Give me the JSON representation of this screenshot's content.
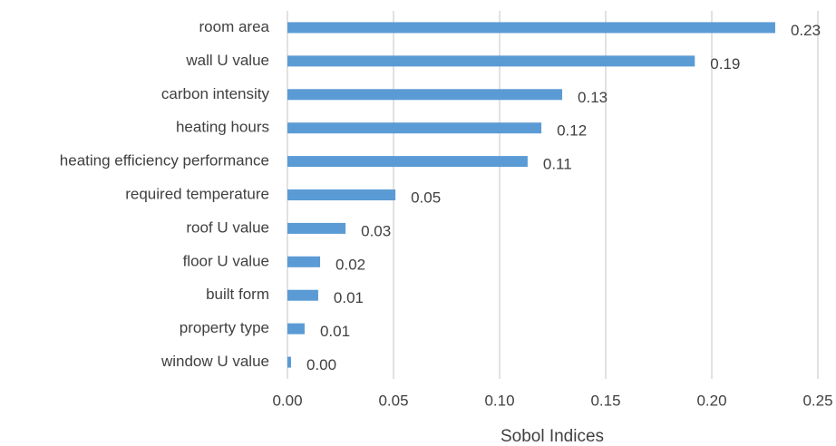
{
  "chart_data": {
    "type": "barh",
    "xlabel": "Sobol Indices",
    "categories": [
      "room area",
      "wall U value",
      "carbon intensity",
      "heating hours",
      "heating efficiency performance",
      "required temperature",
      "roof U value",
      "floor U value",
      "built form",
      "property type",
      "window U value"
    ],
    "values": [
      0.2299,
      0.192,
      0.1295,
      0.1197,
      0.1132,
      0.0509,
      0.0274,
      0.0154,
      0.0145,
      0.0081,
      0.0017
    ],
    "value_labels": [
      "0.23",
      "0.19",
      "0.13",
      "0.12",
      "0.11",
      "0.05",
      "0.03",
      "0.02",
      "0.01",
      "0.01",
      "0.00"
    ],
    "color": "#5b9bd5",
    "xlim": [
      0,
      0.25
    ],
    "xticks": [
      {
        "value": 0,
        "label": "0.00"
      },
      0.05,
      {
        "value": 0.1,
        "label": "0.10"
      },
      0.15,
      {
        "value": 0.2,
        "label": "0.20"
      },
      0.25
    ],
    "grid": true
  }
}
